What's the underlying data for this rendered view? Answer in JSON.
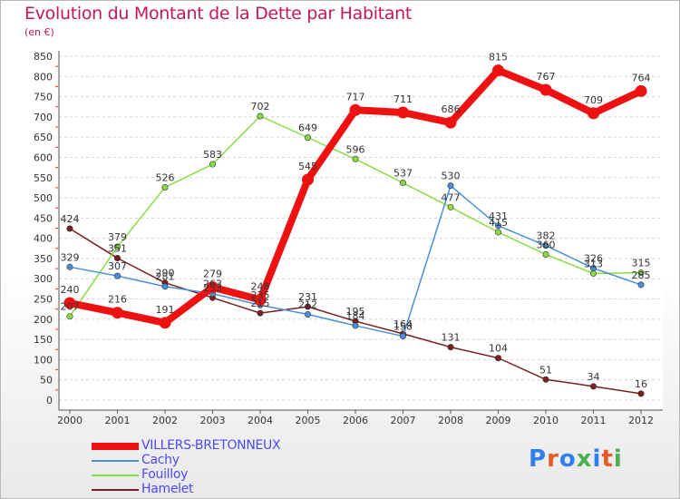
{
  "header": {
    "title": "Evolution du Montant de la Dette par Habitant",
    "unit": "(en €)"
  },
  "logo": {
    "text": "Proxiti",
    "colors": [
      "#2f80ed",
      "#e55b24",
      "#2f80ed",
      "#4caf50",
      "#2f80ed",
      "#e55b24",
      "#4caf50"
    ]
  },
  "chart_data": {
    "type": "line",
    "title": "Evolution du Montant de la Dette par Habitant",
    "subtitle": "(en €)",
    "xlabel": "",
    "ylabel": "",
    "x": [
      "2000",
      "2001",
      "2002",
      "2003",
      "2004",
      "2005",
      "2006",
      "2007",
      "2008",
      "2009",
      "2010",
      "2011",
      "2012"
    ],
    "ylim": [
      0,
      850
    ],
    "yticks": [
      "0",
      "50",
      "100",
      "150",
      "200",
      "250",
      "300",
      "350",
      "400",
      "450",
      "500",
      "550",
      "600",
      "650",
      "700",
      "750",
      "800",
      "850"
    ],
    "grid": "horizontal dashed",
    "legend": "bottom-left",
    "series": [
      {
        "name": "VILLERS-BRETONNEUX",
        "color": "#ee1111",
        "thick": true,
        "values": [
          240,
          216,
          191,
          279,
          248,
          545,
          717,
          711,
          686,
          815,
          767,
          709,
          764
        ],
        "labels": [
          "240",
          "216",
          "191",
          "279",
          "248",
          "545",
          "717",
          "711",
          "686",
          "815",
          "767",
          "709",
          "764"
        ]
      },
      {
        "name": "Cachy",
        "color": "#4a90d9",
        "thick": false,
        "values": [
          329,
          307,
          281,
          263,
          235,
          212,
          184,
          158,
          530,
          431,
          382,
          326,
          285
        ],
        "labels": [
          "329",
          "307",
          "281",
          "263",
          "235",
          "212",
          "184",
          "158",
          "530",
          "431",
          "382",
          "326",
          "285"
        ]
      },
      {
        "name": "Fouilloy",
        "color": "#88dd44",
        "thick": false,
        "values": [
          207,
          379,
          526,
          583,
          702,
          649,
          596,
          537,
          477,
          415,
          360,
          313,
          315
        ],
        "labels": [
          "207",
          "379",
          "526",
          "583",
          "702",
          "649",
          "596",
          "537",
          "477",
          "415",
          "360",
          "313",
          "315"
        ]
      },
      {
        "name": "Hamelet",
        "color": "#7a1f1f",
        "thick": false,
        "values": [
          424,
          351,
          290,
          253,
          215,
          231,
          195,
          164,
          131,
          104,
          51,
          34,
          16
        ],
        "labels": [
          "424",
          "351",
          "290",
          "253",
          "215",
          "231",
          "195",
          "164",
          "131",
          "104",
          "51",
          "34",
          "16"
        ]
      }
    ]
  }
}
